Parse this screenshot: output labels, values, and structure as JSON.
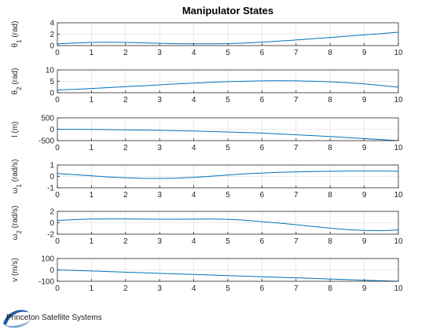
{
  "figure": {
    "background": "#ffffff",
    "line_color": "#0072bd",
    "grid_color": "#d9d9d9",
    "logo_color": "#1f5fa8"
  },
  "logo": {
    "text": "Princeton Satellite Systems",
    "icon": "swoosh-logo-icon"
  },
  "chart_data": [
    {
      "type": "line",
      "title": "Manipulator States",
      "ylabel": "θ1 (rad)",
      "xlim": [
        0,
        10
      ],
      "ylim": [
        0,
        4
      ],
      "xticks": [
        0,
        1,
        2,
        3,
        4,
        5,
        6,
        7,
        8,
        9,
        10
      ],
      "yticks": [
        0,
        2,
        4
      ],
      "grid": true,
      "x": [
        0,
        0.5,
        1,
        1.5,
        2,
        2.5,
        3,
        3.5,
        4,
        4.5,
        5,
        5.5,
        6,
        6.5,
        7,
        7.5,
        8,
        8.5,
        9,
        9.5,
        10
      ],
      "values": [
        0.3,
        0.45,
        0.55,
        0.58,
        0.55,
        0.48,
        0.4,
        0.33,
        0.3,
        0.3,
        0.35,
        0.45,
        0.6,
        0.78,
        0.98,
        1.2,
        1.42,
        1.65,
        1.88,
        2.1,
        2.35
      ]
    },
    {
      "type": "line",
      "title": "",
      "ylabel": "θ2 (rad)",
      "xlim": [
        0,
        10
      ],
      "ylim": [
        0,
        10
      ],
      "xticks": [
        0,
        1,
        2,
        3,
        4,
        5,
        6,
        7,
        8,
        9,
        10
      ],
      "yticks": [
        0,
        5,
        10
      ],
      "grid": true,
      "x": [
        0,
        0.5,
        1,
        1.5,
        2,
        2.5,
        3,
        3.5,
        4,
        4.5,
        5,
        5.5,
        6,
        6.5,
        7,
        7.5,
        8,
        8.5,
        9,
        9.5,
        10
      ],
      "values": [
        1.2,
        1.5,
        1.85,
        2.25,
        2.65,
        3.05,
        3.45,
        3.85,
        4.2,
        4.55,
        4.85,
        5.05,
        5.2,
        5.25,
        5.2,
        5.05,
        4.8,
        4.4,
        3.9,
        3.2,
        2.4
      ]
    },
    {
      "type": "line",
      "title": "",
      "ylabel": "l (m)",
      "xlim": [
        0,
        10
      ],
      "ylim": [
        -500,
        500
      ],
      "xticks": [
        0,
        1,
        2,
        3,
        4,
        5,
        6,
        7,
        8,
        9,
        10
      ],
      "yticks": [
        -500,
        0,
        500
      ],
      "grid": true,
      "x": [
        0,
        1,
        2,
        3,
        4,
        5,
        6,
        7,
        8,
        9,
        10
      ],
      "values": [
        0,
        -10,
        -25,
        -50,
        -80,
        -120,
        -170,
        -240,
        -320,
        -410,
        -500
      ]
    },
    {
      "type": "line",
      "title": "",
      "ylabel": "ω1 (rad/s)",
      "xlim": [
        0,
        10
      ],
      "ylim": [
        -1,
        1
      ],
      "xticks": [
        0,
        1,
        2,
        3,
        4,
        5,
        6,
        7,
        8,
        9,
        10
      ],
      "yticks": [
        -1,
        0,
        1
      ],
      "grid": true,
      "x": [
        0,
        0.5,
        1,
        1.5,
        2,
        2.5,
        3,
        3.5,
        4,
        4.5,
        5,
        5.5,
        6,
        6.5,
        7,
        7.5,
        8,
        8.5,
        9,
        9.5,
        10
      ],
      "values": [
        0.25,
        0.15,
        0.05,
        -0.05,
        -0.12,
        -0.17,
        -0.18,
        -0.15,
        -0.08,
        0.02,
        0.12,
        0.22,
        0.3,
        0.36,
        0.4,
        0.43,
        0.45,
        0.46,
        0.46,
        0.46,
        0.45
      ]
    },
    {
      "type": "line",
      "title": "",
      "ylabel": "ω2 (rad/s)",
      "xlim": [
        0,
        10
      ],
      "ylim": [
        -2,
        2
      ],
      "xticks": [
        0,
        1,
        2,
        3,
        4,
        5,
        6,
        7,
        8,
        9,
        10
      ],
      "yticks": [
        -2,
        0,
        2
      ],
      "grid": true,
      "x": [
        0,
        0.5,
        1,
        1.5,
        2,
        2.5,
        3,
        3.5,
        4,
        4.5,
        5,
        5.5,
        6,
        6.5,
        7,
        7.5,
        8,
        8.5,
        9,
        9.5,
        10
      ],
      "values": [
        0.4,
        0.55,
        0.65,
        0.68,
        0.67,
        0.64,
        0.62,
        0.62,
        0.64,
        0.65,
        0.6,
        0.45,
        0.2,
        -0.05,
        -0.35,
        -0.65,
        -0.95,
        -1.2,
        -1.35,
        -1.4,
        -1.25
      ]
    },
    {
      "type": "line",
      "title": "",
      "ylabel": "v (m/s)",
      "xlim": [
        0,
        10
      ],
      "ylim": [
        -100,
        100
      ],
      "xticks": [
        0,
        1,
        2,
        3,
        4,
        5,
        6,
        7,
        8,
        9,
        10
      ],
      "yticks": [
        -100,
        0,
        100
      ],
      "grid": true,
      "x": [
        0,
        1,
        2,
        3,
        4,
        5,
        6,
        7,
        8,
        9,
        10
      ],
      "values": [
        0,
        -10,
        -20,
        -30,
        -40,
        -50,
        -60,
        -70,
        -80,
        -90,
        -100
      ]
    }
  ]
}
